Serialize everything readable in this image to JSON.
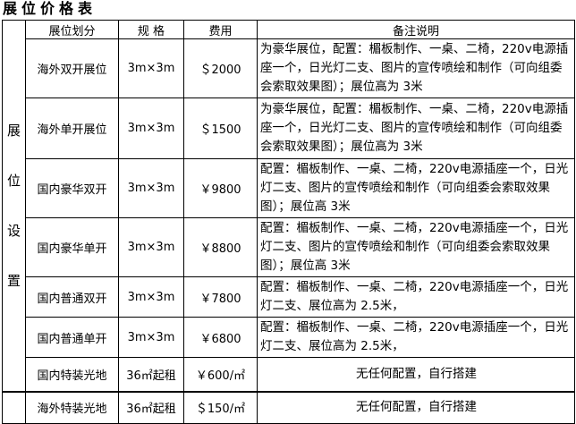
{
  "title": "展位价格表",
  "side_label": [
    "展",
    "位",
    "设",
    "置"
  ],
  "headers": [
    "展位划分",
    "规 格",
    "费用",
    "备注说明"
  ],
  "rows": [
    {
      "type": "海外双开展位",
      "size": "3m×3m",
      "price": "＄2000",
      "note": "为豪华展位，配置：楣板制作、一桌、二椅，220v电源插座一个，日光灯二支、图片的宣传喷绘和制作（可向组委会索取效果图）；展位高为 3米"
    },
    {
      "type": "海外单开展位",
      "size": "3m×3m",
      "price": "＄1500",
      "note": "为豪华展位，配置：楣板制作、一桌、二椅，220v电源插座一个，日光灯二支、图片的宣传喷绘和制作（可向组委会索取效果图）；展位高为 3米"
    },
    {
      "type": "国内豪华双开",
      "size": "3m×3m",
      "price": "￥9800",
      "note": "配置：楣板制作、一桌、二椅，220v电源插座一个，日光灯二支、图片的宣传喷绘和制作（可向组委会索取效果图）；展位高 3米"
    },
    {
      "type": "国内豪华单开",
      "size": "3m×3m",
      "price": "￥8800",
      "note": "配置：楣板制作、一桌、二椅，220v电源插座一个，日光灯二支、图片的宣传喷绘和制作（可向组委会索取效果图）；展位高 3米"
    },
    {
      "type": "国内普通双开",
      "size": "3m×3m",
      "price": "￥7800",
      "note": "配置：楣板制作、一桌、二椅，220v电源插座一个，日光灯二支、展位高为 2.5米，"
    },
    {
      "type": "国内普通单开",
      "size": "3m×3m",
      "price": "￥6800",
      "note": "配置：楣板制作、一桌、二椅，220v电源插座一个，日光灯二支、展位高为 2.5米，"
    },
    {
      "type": "国内特装光地",
      "size": "36㎡起租",
      "price": "￥600/㎡",
      "note": "无任何配置，自行搭建"
    },
    {
      "type": "海外特装光地",
      "size": "36㎡起租",
      "price": "＄150/㎡",
      "note": "无任何配置，自行搭建"
    }
  ]
}
